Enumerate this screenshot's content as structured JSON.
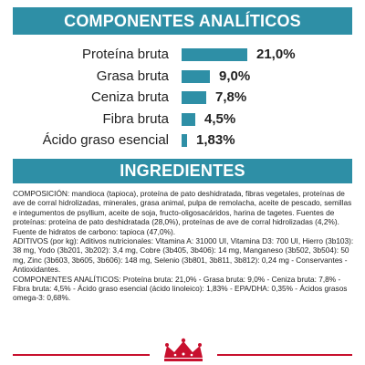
{
  "analysis": {
    "title": "COMPONENTES ANALÍTICOS",
    "rows": [
      {
        "label": "Proteína bruta",
        "value_text": "21,0%",
        "value": 21.0
      },
      {
        "label": "Grasa bruta",
        "value_text": "9,0%",
        "value": 9.0
      },
      {
        "label": "Ceniza bruta",
        "value_text": "7,8%",
        "value": 7.8
      },
      {
        "label": "Fibra bruta",
        "value_text": "4,5%",
        "value": 4.5
      },
      {
        "label": "Ácido graso esencial",
        "value_text": "1,83%",
        "value": 1.83
      }
    ],
    "bar_color": "#2e8fa6"
  },
  "ingredients": {
    "title": "INGREDIENTES",
    "paragraphs": [
      "COMPOSICIÓN: mandioca (tapioca), proteína de pato deshidratada, fibras vegetales, proteínas de ave de corral hidrolizadas, minerales, grasa animal, pulpa de remolacha, aceite de pescado, semillas e integumentos de psyllium, aceite de soja, fructo-oligosacáridos, harina de tagetes. Fuentes de proteínas: proteína de pato deshidratada (28,0%), proteínas de ave de corral hidrolizadas (4,2%). Fuente de hidratos de carbono: tapioca (47,0%).",
      "ADITIVOS (por kg): Aditivos nutricionales: Vitamina A: 31000 UI, Vitamina D3: 700 UI, Hierro (3b103): 38 mg, Yodo (3b201, 3b202): 3,4 mg, Cobre (3b405, 3b406): 14 mg, Manganeso (3b502, 3b504): 50 mg, Zinc (3b603, 3b605, 3b606): 148 mg, Selenio (3b801, 3b811, 3b812): 0,24 mg - Conservantes - Antioxidantes.",
      "COMPONENTES ANALÍTICOS: Proteína bruta: 21,0% - Grasa bruta: 9,0% - Ceniza bruta: 7,8% - Fibra bruta: 4,5% - Ácido graso esencial (ácido linoleico): 1,83% - EPA/DHA: 0,35% - Ácidos grasos omega-3: 0,68%."
    ]
  },
  "brand": {
    "logo_icon": "crown-icon",
    "accent_color": "#c8102e",
    "header_color": "#2e8fa6"
  }
}
